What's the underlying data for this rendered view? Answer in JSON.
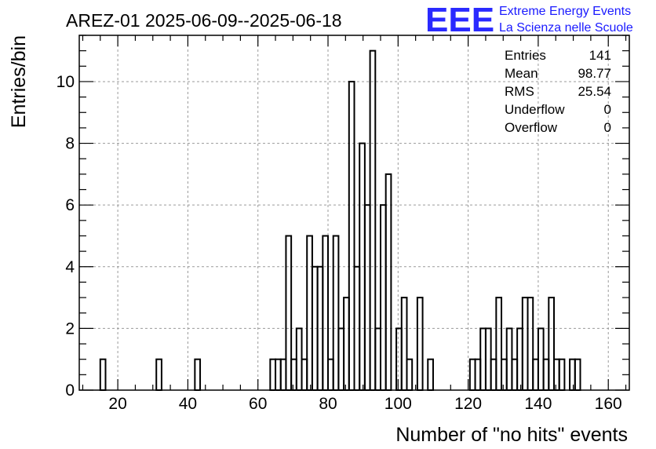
{
  "chart_data": {
    "type": "bar",
    "title": "AREZ-01 2025-06-09--2025-06-18",
    "xlabel": "Number of \"no hits\" events",
    "ylabel": "Entries/bin",
    "xlim": [
      9,
      166
    ],
    "ylim": [
      0,
      11.5
    ],
    "bin_width": 1.5,
    "x_ticks": [
      20,
      40,
      60,
      80,
      100,
      120,
      140,
      160
    ],
    "y_ticks": [
      0,
      2,
      4,
      6,
      8,
      10
    ],
    "grid": true,
    "legend": "none",
    "bins": [
      [
        15,
        1
      ],
      [
        31,
        1
      ],
      [
        42,
        1
      ],
      [
        63.5,
        1
      ],
      [
        65,
        1
      ],
      [
        66.5,
        1
      ],
      [
        68,
        5
      ],
      [
        69.5,
        1
      ],
      [
        71,
        2
      ],
      [
        72.5,
        1
      ],
      [
        74,
        5
      ],
      [
        75.5,
        4
      ],
      [
        77,
        4
      ],
      [
        78.5,
        5
      ],
      [
        80,
        1
      ],
      [
        81.5,
        5
      ],
      [
        83,
        2
      ],
      [
        84.5,
        3
      ],
      [
        86,
        10
      ],
      [
        87.5,
        4
      ],
      [
        89,
        8
      ],
      [
        90.5,
        6
      ],
      [
        92,
        11
      ],
      [
        93.5,
        2
      ],
      [
        95,
        6
      ],
      [
        96.5,
        7
      ],
      [
        99.5,
        2
      ],
      [
        101,
        3
      ],
      [
        102.5,
        1
      ],
      [
        105.5,
        3
      ],
      [
        108.5,
        1
      ],
      [
        120.5,
        1
      ],
      [
        122,
        1
      ],
      [
        123.5,
        2
      ],
      [
        125,
        2
      ],
      [
        126.5,
        1
      ],
      [
        128,
        3
      ],
      [
        129.5,
        1
      ],
      [
        131,
        2
      ],
      [
        132.5,
        1
      ],
      [
        134,
        2
      ],
      [
        135.5,
        3
      ],
      [
        137,
        3
      ],
      [
        138.5,
        1
      ],
      [
        140,
        2
      ],
      [
        141.5,
        1
      ],
      [
        143,
        3
      ],
      [
        144.5,
        1
      ],
      [
        146,
        1
      ],
      [
        149,
        1
      ],
      [
        150.5,
        1
      ]
    ],
    "stats": {
      "entries_label": "Entries",
      "entries": "141",
      "mean_label": "Mean",
      "mean": "98.77",
      "rms_label": "RMS",
      "rms": "25.54",
      "underflow_label": "Underflow",
      "underflow": "0",
      "overflow_label": "Overflow",
      "overflow": "0"
    },
    "logo": {
      "line1": "Extreme Energy Events",
      "line2": "La Scienza nelle Scuole",
      "mark": "EEE",
      "color": "#1a1aff"
    }
  }
}
